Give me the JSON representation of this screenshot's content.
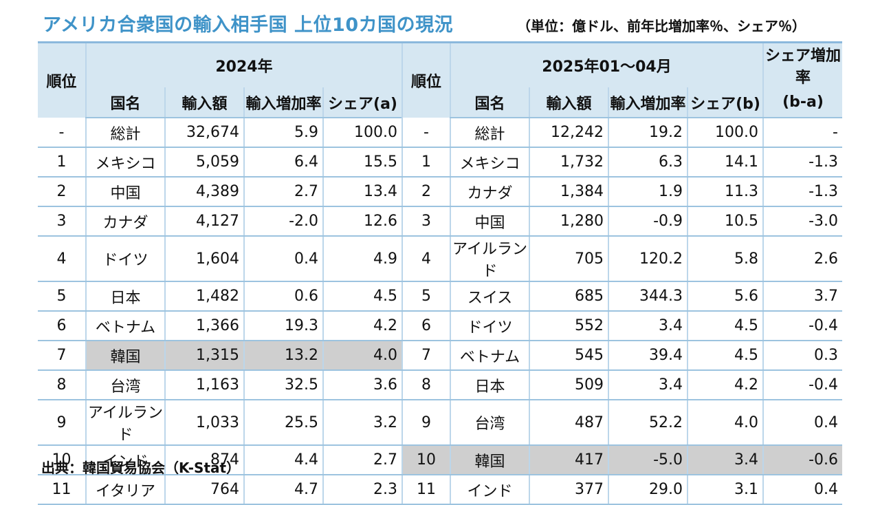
{
  "title": "アメリカ合衆国の輸入相手国 上位10カ国の現況",
  "unit": "（単位：億ドル、前年比増加率％、シェア％）",
  "source": "出典：韓国貿易協会（K-Stat）",
  "header": {
    "rank": "順位",
    "period_2024": "2024年",
    "period_2025": "2025年01～04月",
    "share_change_top": "シェア増加率",
    "share_change_bottom": "(b-a)",
    "country": "国名",
    "import_amount": "輸入額",
    "growth": "輸入増加率",
    "share_a": "シェア(a)",
    "share_b": "シェア(b)"
  },
  "rows": [
    {
      "r1": "-",
      "c1": "総計",
      "a1": "32,674",
      "g1": "5.9",
      "s1": "100.0",
      "r2": "-",
      "c2": "総計",
      "a2": "12,242",
      "g2": "19.2",
      "s2": "100.0",
      "d": "-"
    },
    {
      "r1": "1",
      "c1": "メキシコ",
      "a1": "5,059",
      "g1": "6.4",
      "s1": "15.5",
      "r2": "1",
      "c2": "メキシコ",
      "a2": "1,732",
      "g2": "6.3",
      "s2": "14.1",
      "d": "-1.3"
    },
    {
      "r1": "2",
      "c1": "中国",
      "a1": "4,389",
      "g1": "2.7",
      "s1": "13.4",
      "r2": "2",
      "c2": "カナダ",
      "a2": "1,384",
      "g2": "1.9",
      "s2": "11.3",
      "d": "-1.3"
    },
    {
      "r1": "3",
      "c1": "カナダ",
      "a1": "4,127",
      "g1": "-2.0",
      "s1": "12.6",
      "r2": "3",
      "c2": "中国",
      "a2": "1,280",
      "g2": "-0.9",
      "s2": "10.5",
      "d": "-3.0"
    },
    {
      "r1": "4",
      "c1": "ドイツ",
      "a1": "1,604",
      "g1": "0.4",
      "s1": "4.9",
      "r2": "4",
      "c2": "アイルランド",
      "a2": "705",
      "g2": "120.2",
      "s2": "5.8",
      "d": "2.6"
    },
    {
      "r1": "5",
      "c1": "日本",
      "a1": "1,482",
      "g1": "0.6",
      "s1": "4.5",
      "r2": "5",
      "c2": "スイス",
      "a2": "685",
      "g2": "344.3",
      "s2": "5.6",
      "d": "3.7"
    },
    {
      "r1": "6",
      "c1": "ベトナム",
      "a1": "1,366",
      "g1": "19.3",
      "s1": "4.2",
      "r2": "6",
      "c2": "ドイツ",
      "a2": "552",
      "g2": "3.4",
      "s2": "4.5",
      "d": "-0.4"
    },
    {
      "r1": "7",
      "c1": "韓国",
      "a1": "1,315",
      "g1": "13.2",
      "s1": "4.0",
      "r2": "7",
      "c2": "ベトナム",
      "a2": "545",
      "g2": "39.4",
      "s2": "4.5",
      "d": "0.3"
    },
    {
      "r1": "8",
      "c1": "台湾",
      "a1": "1,163",
      "g1": "32.5",
      "s1": "3.6",
      "r2": "8",
      "c2": "日本",
      "a2": "509",
      "g2": "3.4",
      "s2": "4.2",
      "d": "-0.4"
    },
    {
      "r1": "9",
      "c1": "アイルランド",
      "a1": "1,033",
      "g1": "25.5",
      "s1": "3.2",
      "r2": "9",
      "c2": "台湾",
      "a2": "487",
      "g2": "52.2",
      "s2": "4.0",
      "d": "0.4"
    },
    {
      "r1": "10",
      "c1": "インド",
      "a1": "874",
      "g1": "4.4",
      "s1": "2.7",
      "r2": "10",
      "c2": "韓国",
      "a2": "417",
      "g2": "-5.0",
      "s2": "3.4",
      "d": "-0.6"
    },
    {
      "r1": "11",
      "c1": "イタリア",
      "a1": "764",
      "g1": "4.7",
      "s1": "2.3",
      "r2": "11",
      "c2": "インド",
      "a2": "377",
      "g2": "29.0",
      "s2": "3.1",
      "d": "0.4"
    }
  ]
}
